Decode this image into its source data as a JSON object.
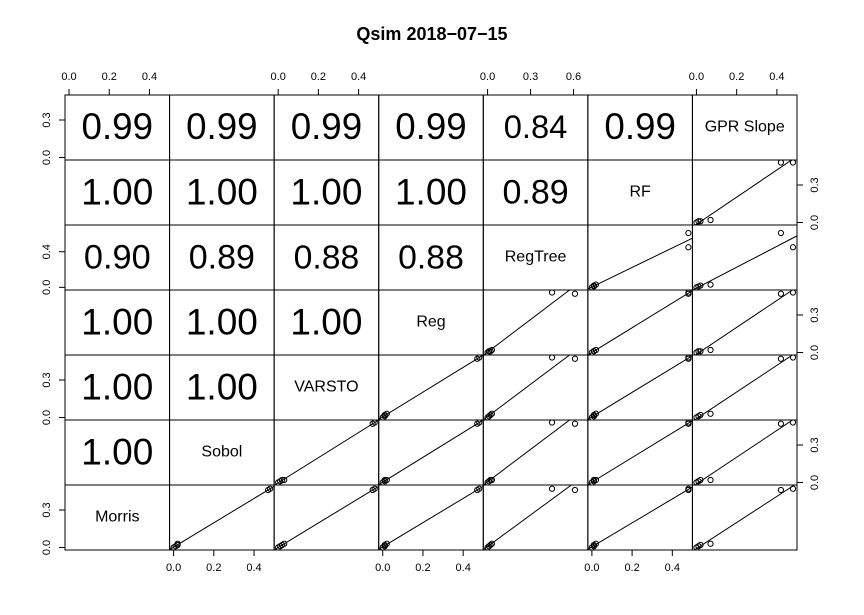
{
  "chart_data": {
    "type": "scatter-matrix",
    "title": "Qsim 2018−07−15",
    "variables": [
      {
        "name": "Morris",
        "values": [
          0.0,
          0.01,
          0.02,
          0.03,
          0.46,
          0.47
        ],
        "lim": [
          -0.02,
          0.5
        ],
        "xticks": [
          {
            "value": 0,
            "label": "0.0"
          },
          {
            "value": 0.2,
            "label": "0.2"
          },
          {
            "value": 0.4,
            "label": "0.4"
          }
        ],
        "yticks": [
          {
            "value": 0,
            "label": "0.0"
          },
          {
            "value": 0.3,
            "label": "0.3"
          }
        ]
      },
      {
        "name": "Sobol",
        "values": [
          0.0,
          0.01,
          0.02,
          0.02,
          0.47,
          0.48
        ],
        "lim": [
          -0.02,
          0.5
        ],
        "xticks": [
          {
            "value": 0,
            "label": "0.0"
          },
          {
            "value": 0.2,
            "label": "0.2"
          },
          {
            "value": 0.4,
            "label": "0.4"
          }
        ],
        "yticks": [
          {
            "value": 0,
            "label": "0.0"
          },
          {
            "value": 0.3,
            "label": "0.3"
          }
        ],
        "correlations": {
          "values": [
            1
          ],
          "value_labels": [
            "1.00"
          ]
        }
      },
      {
        "name": "VARSTO",
        "values": [
          0.0,
          0.01,
          0.02,
          0.03,
          0.47,
          0.48
        ],
        "lim": [
          -0.02,
          0.5
        ],
        "xticks": [
          {
            "value": 0,
            "label": "0.0"
          },
          {
            "value": 0.2,
            "label": "0.2"
          },
          {
            "value": 0.4,
            "label": "0.4"
          }
        ],
        "yticks": [
          {
            "value": 0,
            "label": "0.0"
          },
          {
            "value": 0.3,
            "label": "0.3"
          }
        ],
        "correlations": {
          "values": [
            1,
            1
          ],
          "value_labels": [
            "1.00",
            "1.00"
          ]
        }
      },
      {
        "name": "Reg",
        "values": [
          0.0,
          0.01,
          0.01,
          0.02,
          0.47,
          0.48
        ],
        "lim": [
          -0.02,
          0.5
        ],
        "xticks": [
          {
            "value": 0,
            "label": "0.0"
          },
          {
            "value": 0.2,
            "label": "0.2"
          },
          {
            "value": 0.4,
            "label": "0.4"
          }
        ],
        "yticks": [
          {
            "value": 0,
            "label": "0.0"
          },
          {
            "value": 0.3,
            "label": "0.3"
          }
        ],
        "correlations": {
          "values": [
            1,
            1,
            1
          ],
          "value_labels": [
            "1.00",
            "1.00",
            "1.00"
          ]
        }
      },
      {
        "name": "RegTree",
        "values": [
          0.0,
          0.01,
          0.02,
          0.03,
          0.61,
          0.45
        ],
        "lim": [
          -0.03,
          0.7
        ],
        "xticks": [
          {
            "value": 0,
            "label": "0.0"
          },
          {
            "value": 0.3,
            "label": "0.3"
          },
          {
            "value": 0.6,
            "label": "0.6"
          }
        ],
        "yticks": [
          {
            "value": 0,
            "label": "0.0"
          },
          {
            "value": 0.4,
            "label": "0.4"
          }
        ],
        "correlations": {
          "values": [
            0.9,
            0.89,
            0.88,
            0.88
          ],
          "value_labels": [
            "0.90",
            "0.89",
            "0.88",
            "0.88"
          ]
        }
      },
      {
        "name": "RF",
        "values": [
          0.0,
          0.01,
          0.01,
          0.02,
          0.48,
          0.48
        ],
        "lim": [
          -0.02,
          0.5
        ],
        "xticks": [
          {
            "value": 0,
            "label": "0.0"
          },
          {
            "value": 0.2,
            "label": "0.2"
          },
          {
            "value": 0.4,
            "label": "0.4"
          }
        ],
        "yticks": [
          {
            "value": 0,
            "label": "0.0"
          },
          {
            "value": 0.3,
            "label": "0.3"
          }
        ],
        "correlations": {
          "values": [
            1,
            1,
            1,
            1,
            0.89
          ],
          "value_labels": [
            "1.00",
            "1.00",
            "1.00",
            "1.00",
            "0.89"
          ]
        }
      },
      {
        "name": "GPR Slope",
        "values": [
          0.0,
          0.01,
          0.02,
          0.07,
          0.42,
          0.48
        ],
        "lim": [
          -0.02,
          0.5
        ],
        "xticks": [
          {
            "value": 0,
            "label": "0.0"
          },
          {
            "value": 0.2,
            "label": "0.2"
          },
          {
            "value": 0.4,
            "label": "0.4"
          }
        ],
        "yticks": [
          {
            "value": 0,
            "label": "0.0"
          },
          {
            "value": 0.3,
            "label": "0.3"
          }
        ],
        "correlations": {
          "values": [
            0.99,
            0.99,
            0.99,
            0.99,
            0.84,
            0.99
          ],
          "value_labels": [
            "0.99",
            "0.99",
            "0.99",
            "0.99",
            "0.84",
            "0.99"
          ]
        }
      }
    ]
  }
}
